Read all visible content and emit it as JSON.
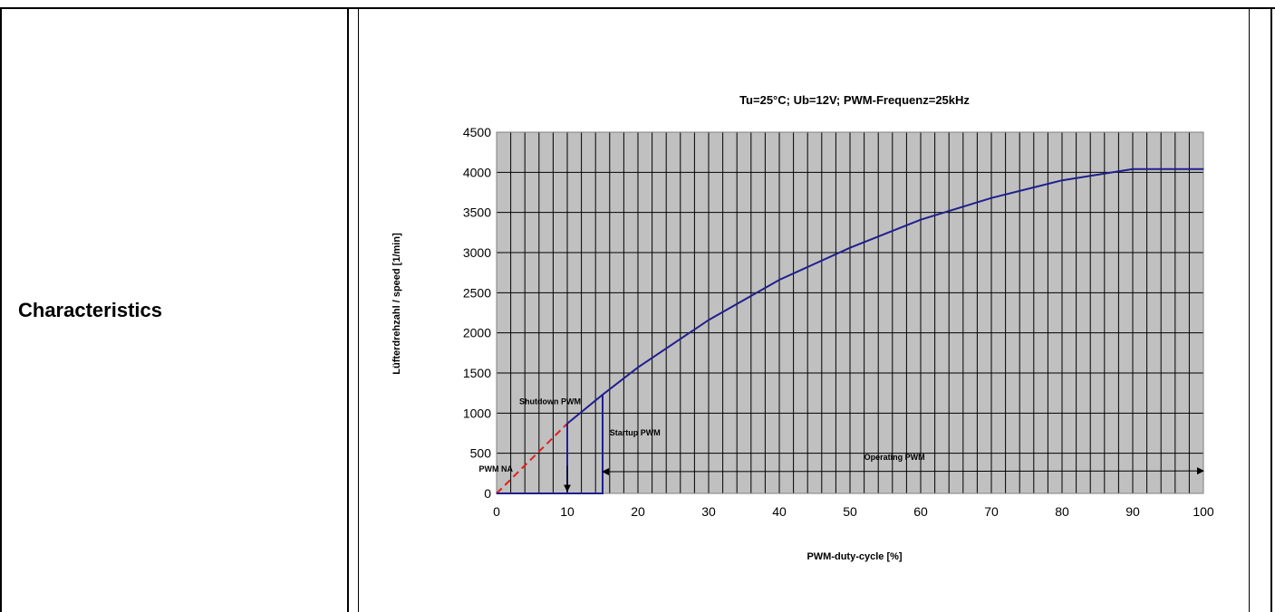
{
  "row_label": "Characteristics",
  "chart_data": {
    "type": "line",
    "title": "Tu=25°C; Ub=12V; PWM-Frequenz=25kHz",
    "xlabel": "PWM-duty-cycle  [%]",
    "ylabel": "Lüfterdrehzahl / speed [1/min]",
    "xlim": [
      0,
      100
    ],
    "ylim": [
      0,
      4500
    ],
    "xticks": [
      0,
      10,
      20,
      30,
      40,
      50,
      60,
      70,
      80,
      90,
      100
    ],
    "yticks": [
      0,
      500,
      1000,
      1500,
      2000,
      2500,
      3000,
      3500,
      4000,
      4500
    ],
    "grid": true,
    "background_color": "#c0c0c0",
    "series": [
      {
        "role": "speed-curve",
        "color": "#1f1f8f",
        "x": [
          10,
          15,
          20,
          30,
          40,
          50,
          60,
          70,
          80,
          90,
          100
        ],
        "y": [
          870,
          1230,
          1570,
          2160,
          2660,
          3060,
          3410,
          3680,
          3900,
          4040,
          4040
        ]
      },
      {
        "role": "not-available-extrapolation",
        "color": "#e0201b",
        "dashed": true,
        "x": [
          0,
          10
        ],
        "y": [
          0,
          870
        ]
      },
      {
        "role": "hysteresis-loop",
        "color": "#1f1f8f",
        "x": [
          15,
          15,
          0,
          10,
          10
        ],
        "y": [
          1230,
          0,
          0,
          0,
          870
        ]
      }
    ],
    "annotations": [
      {
        "text": "Shutdown PWM",
        "x": 3.2,
        "y": 1110
      },
      {
        "text": "Startup PWM",
        "x": 16,
        "y": 720
      },
      {
        "text": "PWM NA",
        "x": -2.5,
        "y": 270
      },
      {
        "text": "Operating PWM",
        "x": 52,
        "y": 420
      }
    ],
    "arrows": [
      {
        "role": "shutdown-arrow",
        "from": [
          10,
          340
        ],
        "to": [
          10,
          30
        ]
      },
      {
        "role": "operating-range-arrow",
        "from": [
          15,
          270
        ],
        "to": [
          100,
          280
        ]
      }
    ]
  }
}
